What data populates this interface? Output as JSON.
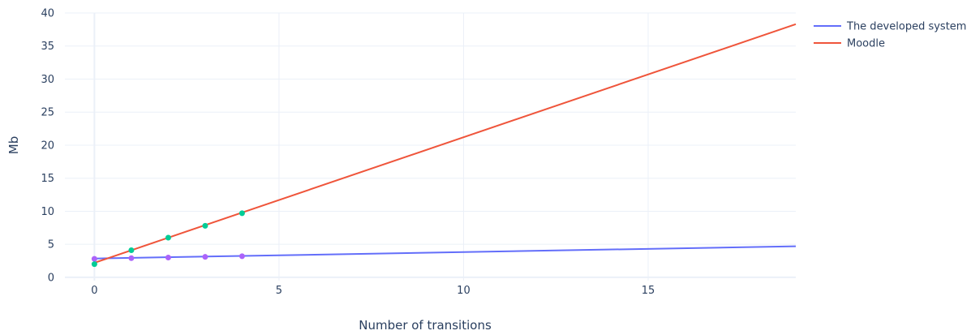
{
  "chart_data": {
    "type": "line",
    "title": "",
    "xlabel": "Number of transitions",
    "ylabel": "Mb",
    "xlim": [
      -0.8,
      19
    ],
    "ylim": [
      -0.5,
      40
    ],
    "x_ticks": [
      0,
      5,
      10,
      15
    ],
    "y_ticks": [
      0,
      5,
      10,
      15,
      20,
      25,
      30,
      35,
      40
    ],
    "grid": true,
    "legend_position": "top-right",
    "series": [
      {
        "name": "The developed system",
        "color": "#636efa",
        "line_x": [
          0,
          19
        ],
        "line_y": [
          2.85,
          4.7
        ],
        "marker_color": "#ab63fa",
        "markers_x": [
          0,
          1,
          2,
          3,
          4
        ],
        "markers_y": [
          2.8,
          2.9,
          3.0,
          3.1,
          3.2
        ]
      },
      {
        "name": "Moodle",
        "color": "#ef553b",
        "line_x": [
          0,
          19
        ],
        "line_y": [
          2.2,
          38.3
        ],
        "marker_color": "#00cc96",
        "markers_x": [
          0,
          1,
          2,
          3,
          4
        ],
        "markers_y": [
          2.0,
          4.1,
          6.0,
          7.8,
          9.7
        ]
      }
    ]
  }
}
